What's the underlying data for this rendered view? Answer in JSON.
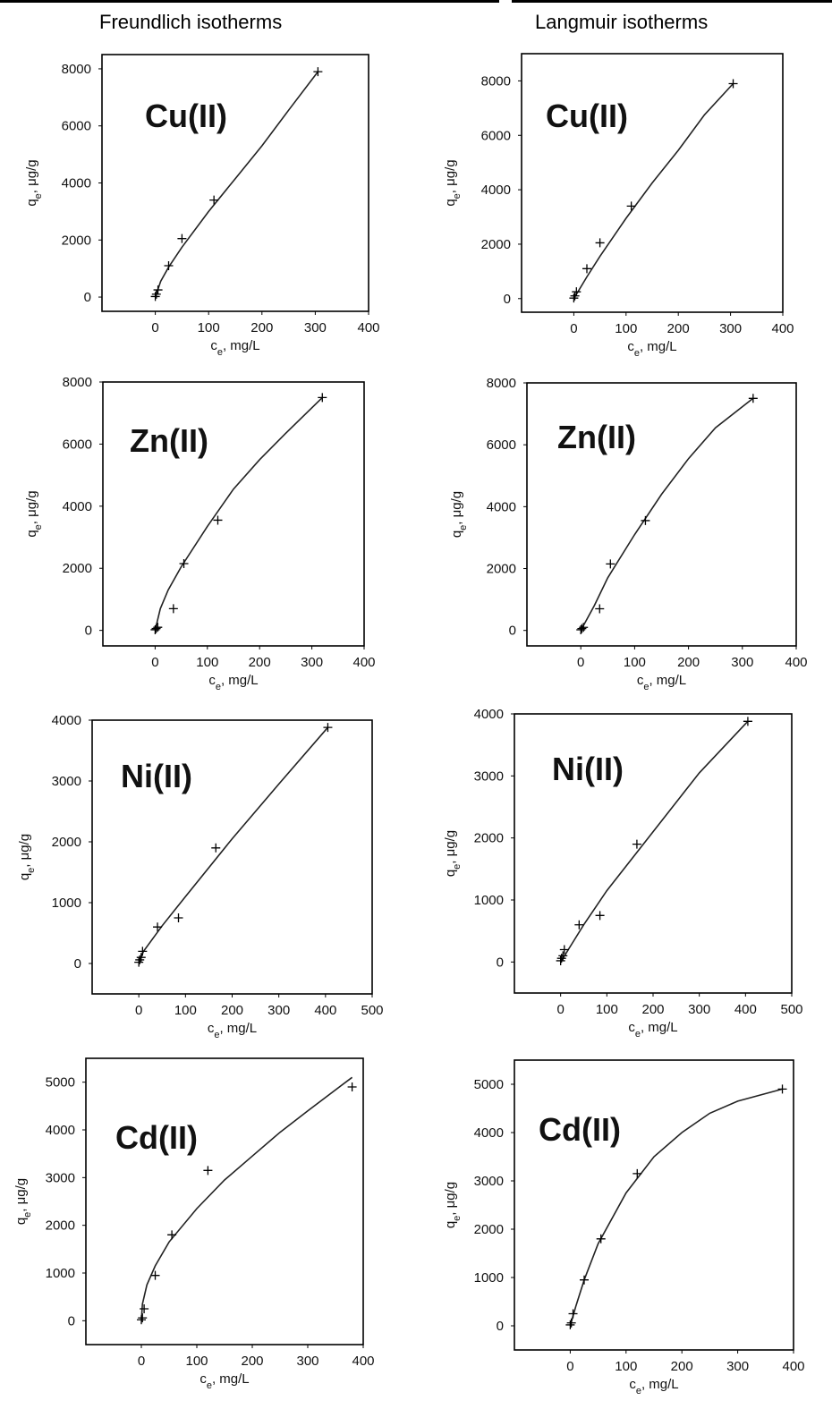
{
  "headers": {
    "left": "Freundlich isotherms",
    "right": "Langmuir isotherms"
  },
  "axis_labels": {
    "y_main": "q",
    "y_sub": "e",
    "y_unit": ", μg/g",
    "x_main": "c",
    "x_sub": "e",
    "x_unit": ", mg/L"
  },
  "chart_data": [
    {
      "type": "scatter",
      "column": "Freundlich isotherms",
      "title": "Cu(II)",
      "xlim": [
        -100,
        400
      ],
      "ylim": [
        -500,
        8500
      ],
      "xticks": [
        0,
        100,
        200,
        300,
        400
      ],
      "yticks": [
        0,
        2000,
        4000,
        6000,
        8000
      ],
      "points": [
        [
          0,
          20
        ],
        [
          2,
          100
        ],
        [
          5,
          250
        ],
        [
          25,
          1100
        ],
        [
          50,
          2050
        ],
        [
          110,
          3400
        ],
        [
          305,
          7900
        ]
      ],
      "fit": [
        [
          0,
          0
        ],
        [
          10,
          550
        ],
        [
          25,
          1050
        ],
        [
          50,
          1750
        ],
        [
          100,
          3000
        ],
        [
          150,
          4150
        ],
        [
          200,
          5300
        ],
        [
          250,
          6550
        ],
        [
          305,
          7900
        ]
      ]
    },
    {
      "type": "scatter",
      "column": "Langmuir isotherms",
      "title": "Cu(II)",
      "xlim": [
        -100,
        400
      ],
      "ylim": [
        -500,
        9000
      ],
      "xticks": [
        0,
        100,
        200,
        300,
        400
      ],
      "yticks": [
        0,
        2000,
        4000,
        6000,
        8000
      ],
      "points": [
        [
          0,
          20
        ],
        [
          2,
          100
        ],
        [
          5,
          250
        ],
        [
          25,
          1100
        ],
        [
          50,
          2050
        ],
        [
          110,
          3400
        ],
        [
          305,
          7900
        ]
      ],
      "fit": [
        [
          0,
          0
        ],
        [
          25,
          800
        ],
        [
          50,
          1550
        ],
        [
          100,
          2950
        ],
        [
          150,
          4250
        ],
        [
          200,
          5450
        ],
        [
          250,
          6750
        ],
        [
          305,
          7900
        ]
      ]
    },
    {
      "type": "scatter",
      "column": "Freundlich isotherms",
      "title": "Zn(II)",
      "xlim": [
        -100,
        400
      ],
      "ylim": [
        -500,
        8000
      ],
      "xticks": [
        0,
        100,
        200,
        300,
        400
      ],
      "yticks": [
        0,
        2000,
        4000,
        6000,
        8000
      ],
      "points": [
        [
          0,
          20
        ],
        [
          2,
          60
        ],
        [
          5,
          100
        ],
        [
          35,
          700
        ],
        [
          55,
          2150
        ],
        [
          120,
          3550
        ],
        [
          320,
          7500
        ]
      ],
      "fit": [
        [
          0,
          0
        ],
        [
          10,
          700
        ],
        [
          25,
          1300
        ],
        [
          50,
          2050
        ],
        [
          100,
          3350
        ],
        [
          150,
          4550
        ],
        [
          200,
          5500
        ],
        [
          250,
          6350
        ],
        [
          320,
          7500
        ]
      ]
    },
    {
      "type": "scatter",
      "column": "Langmuir isotherms",
      "title": "Zn(II)",
      "xlim": [
        -100,
        400
      ],
      "ylim": [
        -500,
        8000
      ],
      "xticks": [
        0,
        100,
        200,
        300,
        400
      ],
      "yticks": [
        0,
        2000,
        4000,
        6000,
        8000
      ],
      "points": [
        [
          0,
          20
        ],
        [
          2,
          60
        ],
        [
          5,
          100
        ],
        [
          35,
          700
        ],
        [
          55,
          2150
        ],
        [
          120,
          3550
        ],
        [
          320,
          7500
        ]
      ],
      "fit": [
        [
          0,
          0
        ],
        [
          25,
          800
        ],
        [
          50,
          1700
        ],
        [
          100,
          3100
        ],
        [
          150,
          4400
        ],
        [
          200,
          5550
        ],
        [
          250,
          6550
        ],
        [
          320,
          7500
        ]
      ]
    },
    {
      "type": "scatter",
      "column": "Freundlich isotherms",
      "title": "Ni(II)",
      "xlim": [
        -100,
        500
      ],
      "ylim": [
        -500,
        4000
      ],
      "xticks": [
        0,
        100,
        200,
        300,
        400,
        500
      ],
      "yticks": [
        0,
        1000,
        2000,
        3000,
        4000
      ],
      "points": [
        [
          0,
          20
        ],
        [
          2,
          60
        ],
        [
          5,
          100
        ],
        [
          8,
          200
        ],
        [
          40,
          600
        ],
        [
          85,
          750
        ],
        [
          165,
          1900
        ],
        [
          405,
          3880
        ]
      ],
      "fit": [
        [
          0,
          0
        ],
        [
          10,
          200
        ],
        [
          50,
          620
        ],
        [
          100,
          1100
        ],
        [
          200,
          2050
        ],
        [
          300,
          2950
        ],
        [
          405,
          3880
        ]
      ]
    },
    {
      "type": "scatter",
      "column": "Langmuir isotherms",
      "title": "Ni(II)",
      "xlim": [
        -100,
        500
      ],
      "ylim": [
        -500,
        4000
      ],
      "xticks": [
        0,
        100,
        200,
        300,
        400,
        500
      ],
      "yticks": [
        0,
        1000,
        2000,
        3000,
        4000
      ],
      "points": [
        [
          0,
          20
        ],
        [
          2,
          60
        ],
        [
          5,
          100
        ],
        [
          8,
          200
        ],
        [
          40,
          600
        ],
        [
          85,
          750
        ],
        [
          165,
          1900
        ],
        [
          405,
          3880
        ]
      ],
      "fit": [
        [
          0,
          0
        ],
        [
          25,
          300
        ],
        [
          50,
          600
        ],
        [
          100,
          1150
        ],
        [
          200,
          2100
        ],
        [
          300,
          3050
        ],
        [
          405,
          3880
        ]
      ]
    },
    {
      "type": "scatter",
      "column": "Freundlich isotherms",
      "title": "Cd(II)",
      "xlim": [
        -100,
        400
      ],
      "ylim": [
        -500,
        5500
      ],
      "xticks": [
        0,
        100,
        200,
        300,
        400
      ],
      "yticks": [
        0,
        1000,
        2000,
        3000,
        4000,
        5000
      ],
      "points": [
        [
          0,
          20
        ],
        [
          2,
          60
        ],
        [
          5,
          250
        ],
        [
          25,
          950
        ],
        [
          55,
          1800
        ],
        [
          120,
          3150
        ],
        [
          380,
          4900
        ]
      ],
      "fit": [
        [
          0,
          0
        ],
        [
          2,
          350
        ],
        [
          10,
          750
        ],
        [
          25,
          1150
        ],
        [
          50,
          1650
        ],
        [
          100,
          2350
        ],
        [
          150,
          2950
        ],
        [
          200,
          3450
        ],
        [
          250,
          3950
        ],
        [
          300,
          4400
        ],
        [
          380,
          5100
        ]
      ]
    },
    {
      "type": "scatter",
      "column": "Langmuir isotherms",
      "title": "Cd(II)",
      "xlim": [
        -100,
        400
      ],
      "ylim": [
        -500,
        5500
      ],
      "xticks": [
        0,
        100,
        200,
        300,
        400
      ],
      "yticks": [
        0,
        1000,
        2000,
        3000,
        4000,
        5000
      ],
      "points": [
        [
          0,
          20
        ],
        [
          2,
          60
        ],
        [
          5,
          250
        ],
        [
          25,
          950
        ],
        [
          55,
          1800
        ],
        [
          120,
          3150
        ],
        [
          380,
          4900
        ]
      ],
      "fit": [
        [
          0,
          0
        ],
        [
          10,
          400
        ],
        [
          25,
          950
        ],
        [
          50,
          1700
        ],
        [
          100,
          2750
        ],
        [
          150,
          3500
        ],
        [
          200,
          4000
        ],
        [
          250,
          4400
        ],
        [
          300,
          4650
        ],
        [
          380,
          4900
        ]
      ]
    }
  ]
}
